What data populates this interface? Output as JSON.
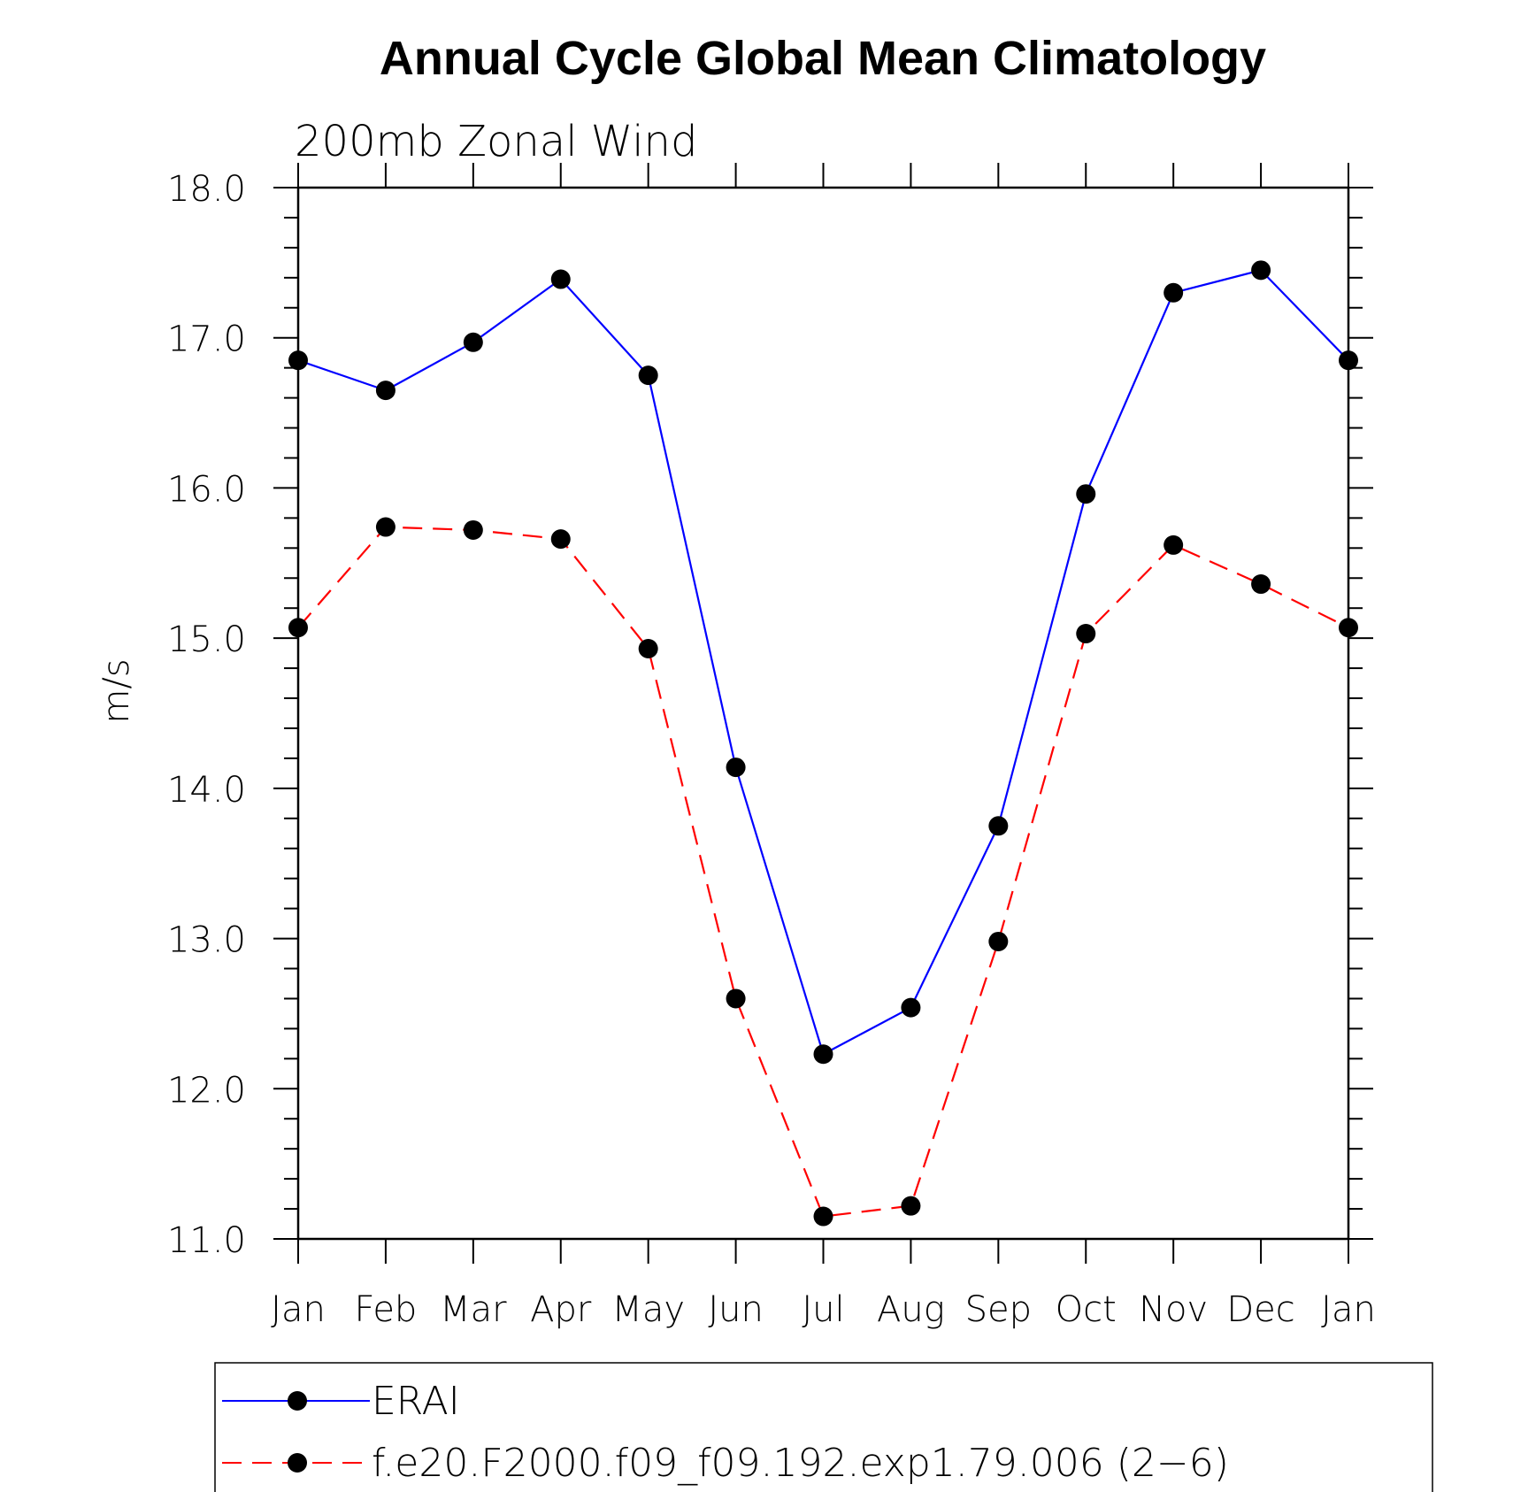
{
  "chart_data": {
    "type": "line",
    "title": "Annual Cycle Global Mean Climatology",
    "subtitle": "200mb  Zonal  Wind",
    "xlabel": "",
    "ylabel": "m/s",
    "categories": [
      "Jan",
      "Feb",
      "Mar",
      "Apr",
      "May",
      "Jun",
      "Jul",
      "Aug",
      "Sep",
      "Oct",
      "Nov",
      "Dec",
      "Jan"
    ],
    "ylim": [
      11.0,
      18.0
    ],
    "yticks": [
      "11.0",
      "12.0",
      "13.0",
      "14.0",
      "15.0",
      "16.0",
      "17.0",
      "18.0"
    ],
    "y_major_step": 1.0,
    "y_minor_step": 0.2,
    "grid": false,
    "legend_position": "bottom",
    "series": [
      {
        "name": "ERAI",
        "color": "#0000ff",
        "line_style": "solid",
        "marker": "filled-circle",
        "values": [
          16.85,
          16.65,
          16.97,
          17.39,
          16.75,
          14.14,
          12.23,
          12.54,
          13.75,
          15.96,
          17.3,
          17.45,
          16.85
        ]
      },
      {
        "name": "f.e20.F2000.f09_f09.192.exp1.79.006 (2−6)",
        "color": "#ff0000",
        "line_style": "dashed",
        "marker": "filled-circle",
        "values": [
          15.07,
          15.74,
          15.72,
          15.66,
          14.93,
          12.6,
          11.15,
          11.22,
          12.98,
          15.03,
          15.62,
          15.36,
          15.07
        ]
      }
    ]
  }
}
